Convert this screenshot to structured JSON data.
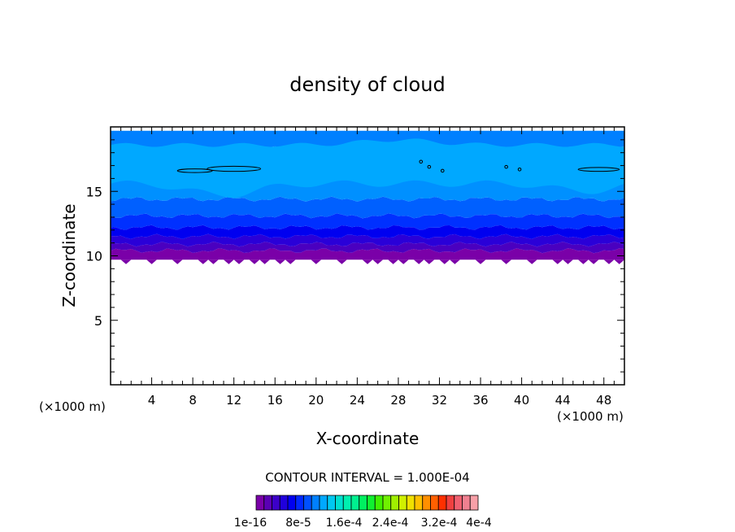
{
  "chart_data": {
    "type": "heatmap",
    "title": "density of cloud",
    "xlabel": "X-coordinate",
    "ylabel": "Z-coordinate",
    "x_unit_label": "(×1000 m)",
    "x_unit_label_right": "(×1000 m)",
    "xlim": [
      0,
      50
    ],
    "ylim": [
      0,
      20
    ],
    "x_ticks": [
      4,
      8,
      12,
      16,
      20,
      24,
      28,
      32,
      36,
      40,
      44,
      48
    ],
    "y_ticks": [
      5,
      10,
      15
    ],
    "cloud_base_z": 9.7,
    "cloud_top_z": 19.7,
    "contour_interval_text": "CONTOUR INTERVAL = 1.000E-04",
    "colorbar": {
      "colors": [
        "#7a00a8",
        "#5a00b4",
        "#3c00c8",
        "#2000dc",
        "#0000f0",
        "#0028ff",
        "#0050ff",
        "#0080ff",
        "#00a8ff",
        "#00c8f0",
        "#00e0d0",
        "#00f0b0",
        "#00f090",
        "#00f060",
        "#10f030",
        "#40f000",
        "#70f000",
        "#a0f000",
        "#d0f000",
        "#f0e000",
        "#ffc000",
        "#ff9000",
        "#ff6000",
        "#ff3000",
        "#f04040",
        "#f06070",
        "#f08090",
        "#f8a0a8"
      ],
      "labels": [
        "1e-16",
        "8e-5",
        "1.6e-4",
        "2.4e-4",
        "3.2e-4",
        "4e-4"
      ]
    },
    "field_bands": [
      {
        "z_bottom": 9.7,
        "z_top": 10.4,
        "color": "#7a00a8"
      },
      {
        "z_bottom": 10.4,
        "z_top": 10.9,
        "color": "#4a00c0"
      },
      {
        "z_bottom": 10.9,
        "z_top": 11.5,
        "color": "#2a00d8"
      },
      {
        "z_bottom": 11.5,
        "z_top": 12.2,
        "color": "#0000f0"
      },
      {
        "z_bottom": 12.2,
        "z_top": 13.1,
        "color": "#0030ff"
      },
      {
        "z_bottom": 13.1,
        "z_top": 14.4,
        "color": "#0060ff"
      },
      {
        "z_bottom": 14.4,
        "z_top": 18.3,
        "color": "#0090ff"
      },
      {
        "z_bottom": 18.3,
        "z_top": 19.7,
        "color": "#0080ff"
      }
    ],
    "light_region_color": "#00a8ff"
  }
}
